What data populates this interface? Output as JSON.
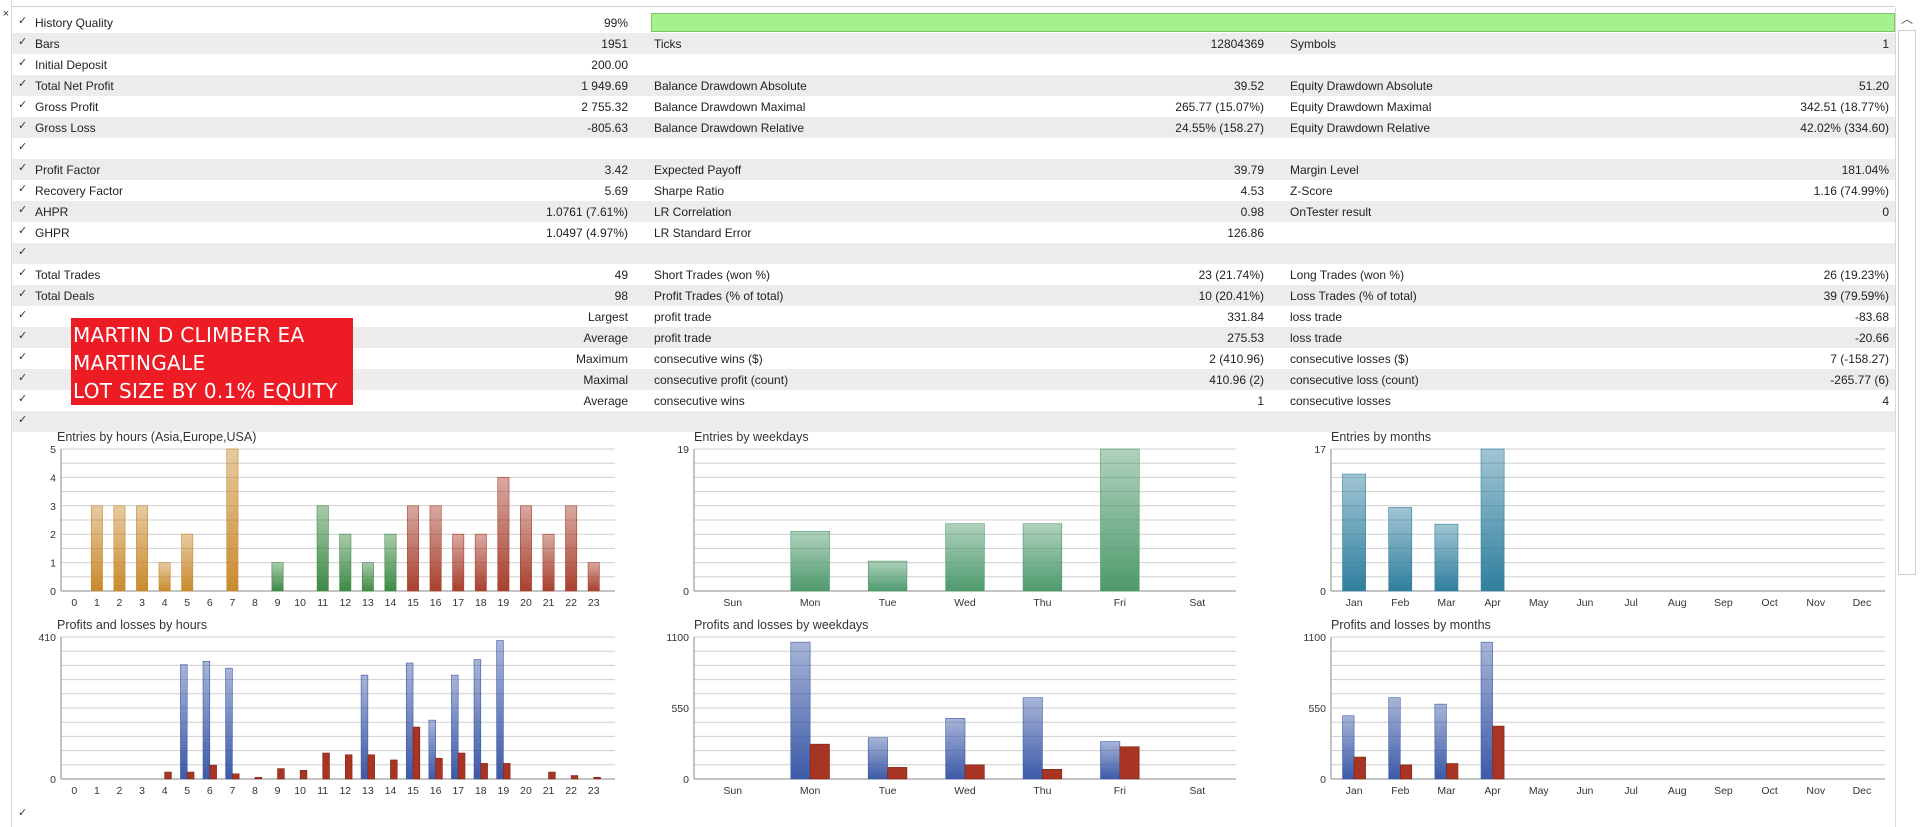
{
  "window": {
    "close_glyph": "×",
    "scroll_up_glyph": "︿"
  },
  "stats": {
    "check": "✓",
    "rows": [
      {
        "alt": false,
        "hq": true,
        "l1": "History Quality",
        "v1": "99%"
      },
      {
        "alt": true,
        "l1": "Bars",
        "v1": "1951",
        "l2": "Ticks",
        "v2": "12804369",
        "l3": "Symbols",
        "v3": "1"
      },
      {
        "alt": false,
        "l1": "Initial Deposit",
        "v1": "200.00"
      },
      {
        "alt": true,
        "l1": "Total Net Profit",
        "v1": "1 949.69",
        "l2": "Balance Drawdown Absolute",
        "v2": "39.52",
        "l3": "Equity Drawdown Absolute",
        "v3": "51.20"
      },
      {
        "alt": false,
        "l1": "Gross Profit",
        "v1": "2 755.32",
        "l2": "Balance Drawdown Maximal",
        "v2": "265.77 (15.07%)",
        "l3": "Equity Drawdown Maximal",
        "v3": "342.51 (18.77%)"
      },
      {
        "alt": true,
        "l1": "Gross Loss",
        "v1": "-805.63",
        "l2": "Balance Drawdown Relative",
        "v2": "24.55% (158.27)",
        "l3": "Equity Drawdown Relative",
        "v3": "42.02% (334.60)"
      },
      {
        "alt": false
      },
      {
        "alt": true,
        "l1": "Profit Factor",
        "v1": "3.42",
        "l2": "Expected Payoff",
        "v2": "39.79",
        "l3": "Margin Level",
        "v3": "181.04%"
      },
      {
        "alt": false,
        "l1": "Recovery Factor",
        "v1": "5.69",
        "l2": "Sharpe Ratio",
        "v2": "4.53",
        "l3": "Z-Score",
        "v3": "1.16 (74.99%)"
      },
      {
        "alt": true,
        "l1": "AHPR",
        "v1": "1.0761 (7.61%)",
        "l2": "LR Correlation",
        "v2": "0.98",
        "l3": "OnTester result",
        "v3": "0"
      },
      {
        "alt": false,
        "l1": "GHPR",
        "v1": "1.0497 (4.97%)",
        "l2": "LR Standard Error",
        "v2": "126.86"
      },
      {
        "alt": true
      },
      {
        "alt": false,
        "l1": "Total Trades",
        "v1": "49",
        "l2": "Short Trades (won %)",
        "v2": "23 (21.74%)",
        "l3": "Long Trades (won %)",
        "v3": "26 (19.23%)"
      },
      {
        "alt": true,
        "l1": "Total Deals",
        "v1": "98",
        "l2": "Profit Trades (% of total)",
        "v2": "10 (20.41%)",
        "l3": "Loss Trades (% of total)",
        "v3": "39 (79.59%)"
      },
      {
        "alt": false,
        "v1": "Largest",
        "l2": "profit trade",
        "v2": "331.84",
        "l3": "loss trade",
        "v3": "-83.68"
      },
      {
        "alt": true,
        "v1": "Average",
        "l2": "profit trade",
        "v2": "275.53",
        "l3": "loss trade",
        "v3": "-20.66"
      },
      {
        "alt": false,
        "v1": "Maximum",
        "l2": "consecutive wins ($)",
        "v2": "2 (410.96)",
        "l3": "consecutive losses ($)",
        "v3": "7 (-158.27)"
      },
      {
        "alt": true,
        "v1": "Maximal",
        "l2": "consecutive profit (count)",
        "v2": "410.96 (2)",
        "l3": "consecutive loss (count)",
        "v3": "-265.77 (6)"
      },
      {
        "alt": false,
        "v1": "Average",
        "l2": "consecutive wins",
        "v2": "1",
        "l3": "consecutive losses",
        "v3": "4"
      },
      {
        "alt": true
      }
    ]
  },
  "banner": {
    "lines": [
      "MARTIN D CLIMBER EA",
      "MARTINGALE",
      "LOT SIZE BY 0.1% EQUITY"
    ]
  },
  "colors": {
    "orange": "#c98a2e",
    "green": "#3e8a45",
    "red": "#a8402e",
    "blue": "#3d5aa8",
    "loss": "#a83424",
    "teal": "#2f7f9e",
    "weekgreen": "#4e9a6c",
    "grid": "#cfcfcf",
    "hq": "#a7f08e",
    "banner": "#ed1c24"
  },
  "chart_data": [
    {
      "type": "bar",
      "title": "Entries by hours (Asia,Europe,USA)",
      "categories": [
        "0",
        "1",
        "2",
        "3",
        "4",
        "5",
        "6",
        "7",
        "8",
        "9",
        "10",
        "11",
        "12",
        "13",
        "14",
        "15",
        "16",
        "17",
        "18",
        "19",
        "20",
        "21",
        "22",
        "23"
      ],
      "values": [
        0,
        3,
        3,
        3,
        1,
        2,
        0,
        5,
        0,
        1,
        0,
        3,
        2,
        1,
        2,
        3,
        3,
        2,
        2,
        4,
        3,
        2,
        3,
        1
      ],
      "colors": [
        "orange",
        "orange",
        "orange",
        "orange",
        "orange",
        "orange",
        "orange",
        "orange",
        "green",
        "green",
        "green",
        "green",
        "green",
        "green",
        "green",
        "red",
        "red",
        "red",
        "red",
        "red",
        "red",
        "red",
        "red",
        "red"
      ],
      "ylim": [
        0,
        5
      ],
      "yticks": [
        "0",
        "1",
        "2",
        "3",
        "4",
        "5"
      ]
    },
    {
      "type": "bar",
      "title": "Entries by weekdays",
      "categories": [
        "Sun",
        "Mon",
        "Tue",
        "Wed",
        "Thu",
        "Fri",
        "Sat"
      ],
      "values": [
        0,
        8,
        4,
        9,
        9,
        19,
        0
      ],
      "ylim": [
        0,
        19
      ],
      "yticks": [
        "0",
        "19"
      ]
    },
    {
      "type": "bar",
      "title": "Entries by months",
      "categories": [
        "Jan",
        "Feb",
        "Mar",
        "Apr",
        "May",
        "Jun",
        "Jul",
        "Aug",
        "Sep",
        "Oct",
        "Nov",
        "Dec"
      ],
      "values": [
        14,
        10,
        8,
        17,
        0,
        0,
        0,
        0,
        0,
        0,
        0,
        0
      ],
      "ylim": [
        0,
        17
      ],
      "yticks": [
        "0",
        "17"
      ]
    },
    {
      "type": "bar",
      "title": "Profits and losses by hours",
      "categories": [
        "0",
        "1",
        "2",
        "3",
        "4",
        "5",
        "6",
        "7",
        "8",
        "9",
        "10",
        "11",
        "12",
        "13",
        "14",
        "15",
        "16",
        "17",
        "18",
        "19",
        "20",
        "21",
        "22",
        "23"
      ],
      "series": [
        {
          "values": [
            0,
            0,
            0,
            0,
            0,
            330,
            340,
            320,
            0,
            0,
            0,
            0,
            0,
            300,
            0,
            335,
            170,
            300,
            345,
            400,
            0,
            0,
            0,
            0
          ]
        },
        {
          "values": [
            0,
            0,
            0,
            0,
            20,
            20,
            40,
            15,
            5,
            30,
            25,
            75,
            70,
            70,
            55,
            150,
            60,
            75,
            45,
            45,
            0,
            20,
            10,
            5
          ]
        }
      ],
      "ylim": [
        0,
        410
      ],
      "yticks": [
        "0",
        "410"
      ]
    },
    {
      "type": "bar",
      "title": "Profits and losses by weekdays",
      "categories": [
        "Sun",
        "Mon",
        "Tue",
        "Wed",
        "Thu",
        "Fri",
        "Sat"
      ],
      "series": [
        {
          "values": [
            0,
            1060,
            320,
            470,
            630,
            290,
            0
          ]
        },
        {
          "values": [
            0,
            270,
            90,
            110,
            75,
            250,
            0
          ]
        }
      ],
      "ylim": [
        0,
        1100
      ],
      "yticks": [
        "0",
        "550",
        "1100"
      ]
    },
    {
      "type": "bar",
      "title": "Profits and losses by months",
      "categories": [
        "Jan",
        "Feb",
        "Mar",
        "Apr",
        "May",
        "Jun",
        "Jul",
        "Aug",
        "Sep",
        "Oct",
        "Nov",
        "Dec"
      ],
      "series": [
        {
          "values": [
            490,
            630,
            580,
            1060,
            0,
            0,
            0,
            0,
            0,
            0,
            0,
            0
          ]
        },
        {
          "values": [
            170,
            110,
            120,
            410,
            0,
            0,
            0,
            0,
            0,
            0,
            0,
            0
          ]
        }
      ],
      "ylim": [
        0,
        1100
      ],
      "yticks": [
        "0",
        "550",
        "1100"
      ]
    }
  ]
}
